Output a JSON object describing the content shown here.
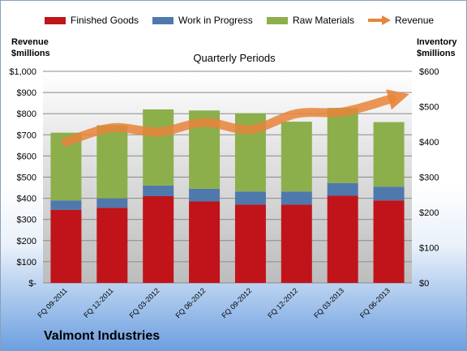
{
  "chart_data": {
    "type": "bar",
    "subtitle": "Quarterly Periods",
    "footer_title": "Valmont Industries",
    "categories": [
      "FQ 09-2011",
      "FQ 12-2011",
      "FQ 03-2012",
      "FQ 06-2012",
      "FQ 09-2012",
      "FQ 12-2012",
      "FQ 03-2013",
      "FQ 06-2013"
    ],
    "stacked": true,
    "series": [
      {
        "name": "Finished Goods",
        "color": "#c0141a",
        "values": [
          345,
          355,
          410,
          385,
          370,
          370,
          412,
          390
        ]
      },
      {
        "name": "Work in Progress",
        "color": "#4f79ad",
        "values": [
          45,
          45,
          50,
          60,
          62,
          62,
          60,
          65
        ]
      },
      {
        "name": "Raw Materials",
        "color": "#8caf4c",
        "values": [
          320,
          345,
          360,
          370,
          370,
          330,
          355,
          305
        ]
      }
    ],
    "line_series": {
      "name": "Revenue",
      "color": "#e8843a",
      "axis": "right",
      "values": [
        400,
        440,
        428,
        455,
        435,
        480,
        485,
        520
      ]
    },
    "left_axis": {
      "title_line1": "Revenue",
      "title_line2": "$millions",
      "min": 0,
      "max": 1000,
      "ticks": [
        "$-",
        "$100",
        "$200",
        "$300",
        "$400",
        "$500",
        "$600",
        "$700",
        "$800",
        "$900",
        "$1,000"
      ]
    },
    "right_axis": {
      "title_line1": "Inventory",
      "title_line2": "$millions",
      "min": 0,
      "max": 600,
      "ticks": [
        "$0",
        "$100",
        "$200",
        "$300",
        "$400",
        "$500",
        "$600"
      ]
    },
    "grid": true,
    "legend_position": "top"
  }
}
